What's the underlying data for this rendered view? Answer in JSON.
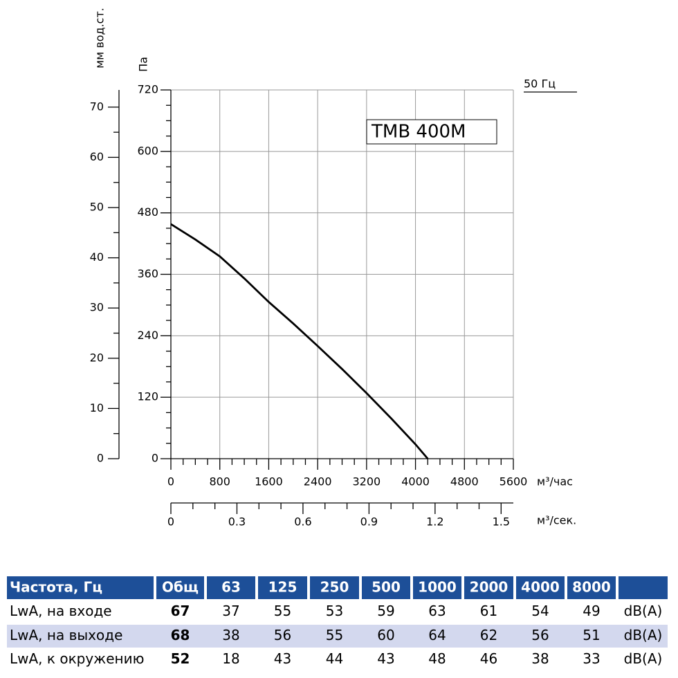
{
  "chart_data": {
    "type": "line",
    "label": "TMB 400M",
    "frequency_label": "50 Гц",
    "y_label": "Па",
    "y2_label": "мм вод.ст.",
    "x_label": "м³/час",
    "x2_label": "м³/сек.",
    "x": [
      0,
      400,
      800,
      1200,
      1600,
      2000,
      2400,
      2800,
      3200,
      3600,
      4000,
      4200
    ],
    "values": [
      458,
      428,
      395,
      352,
      306,
      264,
      220,
      175,
      128,
      79,
      28,
      0
    ],
    "color": "#000000",
    "xlim": [
      0,
      5600
    ],
    "xticks": [
      0,
      800,
      1600,
      2400,
      3200,
      4000,
      4800,
      5600
    ],
    "x2lim": [
      0,
      1.5556
    ],
    "x2ticks": [
      0,
      0.3,
      0.6,
      0.9,
      1.2,
      1.5
    ],
    "ylim": [
      0,
      720
    ],
    "yticks": [
      0,
      120,
      240,
      360,
      480,
      600,
      720
    ],
    "y2lim": [
      0,
      73.42
    ],
    "y2ticks": [
      0,
      10,
      20,
      30,
      40,
      50,
      60,
      70
    ],
    "grid": true
  },
  "table": {
    "header": [
      "Частота, Гц",
      "Общ",
      "63",
      "125",
      "250",
      "500",
      "1000",
      "2000",
      "4000",
      "8000"
    ],
    "rows": [
      [
        "LwA, на входе",
        67,
        37,
        55,
        53,
        59,
        63,
        61,
        54,
        49,
        "dB(A)"
      ],
      [
        "LwA, на выходе",
        68,
        38,
        56,
        55,
        60,
        64,
        62,
        56,
        51,
        "dB(A)"
      ],
      [
        "LwA, к окружению",
        52,
        18,
        43,
        44,
        43,
        48,
        46,
        38,
        33,
        "dB(A)"
      ]
    ]
  }
}
